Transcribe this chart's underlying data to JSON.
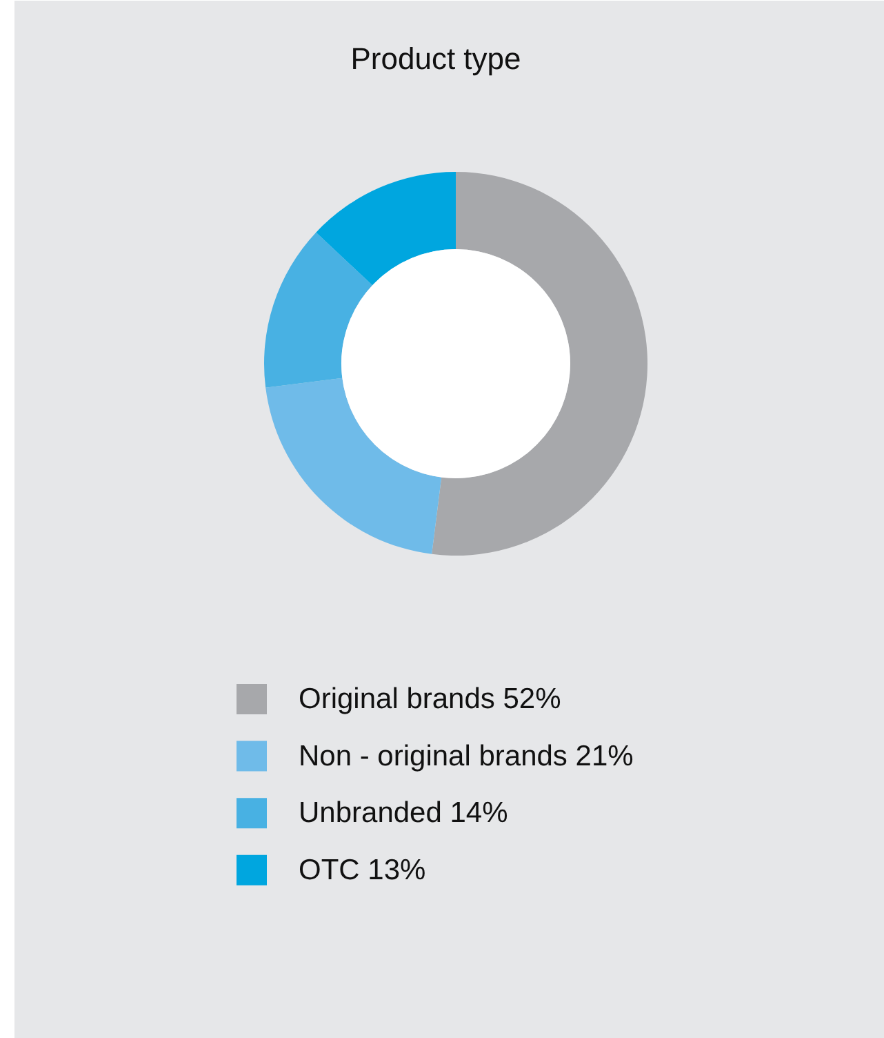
{
  "chart_data": {
    "type": "donut",
    "title": "Product type",
    "categories": [
      "Original brands",
      "Non - original brands",
      "Unbranded",
      "OTC"
    ],
    "values": [
      52,
      21,
      14,
      13
    ],
    "value_labels": [
      "52%",
      "21%",
      "14%",
      "13%"
    ],
    "colors": [
      "#a7a8ab",
      "#6fbbe9",
      "#48b1e3",
      "#00a6df"
    ],
    "legend": "bottom"
  }
}
